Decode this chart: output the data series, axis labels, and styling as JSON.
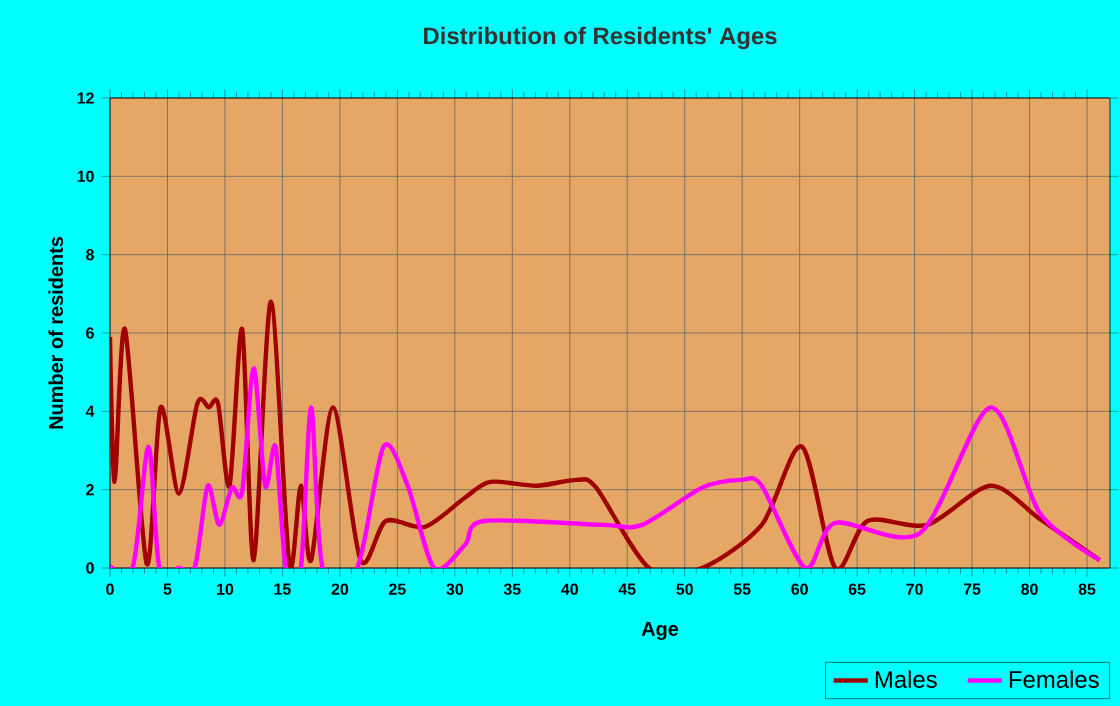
{
  "chart_data": {
    "type": "line",
    "title": "Distribution of Residents' Ages",
    "xlabel": "Age",
    "ylabel": "Number of residents",
    "xlim": [
      0,
      87
    ],
    "xticks": [
      0,
      5,
      10,
      15,
      20,
      25,
      30,
      35,
      40,
      45,
      50,
      55,
      60,
      65,
      70,
      75,
      80,
      85
    ],
    "ylim": [
      0,
      12
    ],
    "yticks": [
      0,
      2,
      4,
      6,
      8,
      10,
      12
    ],
    "grid": true,
    "legend": "bottom",
    "series": [
      {
        "name": "Males",
        "color": "#a00000",
        "x": [
          0,
          0.4,
          1.3,
          3.2,
          4.4,
          6,
          7.6,
          8.6,
          9.4,
          10.4,
          11.5,
          12.5,
          14,
          15.6,
          16.6,
          17.5,
          19.4,
          21.8,
          24,
          27.4,
          30.9,
          33.1,
          37.1,
          40.6,
          42.3,
          46.9,
          51.5,
          56.7,
          60.2,
          63.1,
          65.9,
          71.1,
          76.6,
          80.9,
          86.1
        ],
        "values": [
          5.9,
          2.2,
          6.1,
          0.1,
          4.1,
          1.9,
          4.2,
          4.1,
          4.2,
          2.1,
          6.1,
          0.2,
          6.8,
          0.1,
          2.1,
          0.2,
          4.1,
          0.2,
          1.2,
          1.05,
          1.8,
          2.2,
          2.1,
          2.25,
          2.05,
          0,
          0,
          1.1,
          3.1,
          0,
          1.2,
          1.1,
          2.1,
          1.25,
          0.2
        ]
      },
      {
        "name": "Females",
        "color": "#ff00ff",
        "x": [
          0,
          2,
          3.35,
          4.3,
          6,
          7.4,
          8.5,
          9.5,
          10.6,
          11.5,
          12.5,
          13.5,
          14.4,
          15.3,
          16.6,
          17.5,
          18.5,
          21.5,
          23.8,
          25.9,
          28.2,
          30.9,
          32.5,
          42.9,
          46.3,
          51.5,
          54.9,
          56.7,
          60.5,
          63.1,
          70.5,
          76.6,
          80.9,
          86.1
        ],
        "values": [
          0.05,
          0.05,
          3.1,
          0,
          0,
          0.05,
          2.1,
          1.1,
          2.05,
          1.95,
          5.1,
          2.1,
          3.1,
          0,
          0,
          4.1,
          0,
          0,
          3.1,
          2.1,
          0,
          0.6,
          1.2,
          1.1,
          1.1,
          2.05,
          2.25,
          2.1,
          0,
          1.15,
          0.9,
          4.1,
          1.4,
          0.2
        ]
      }
    ]
  }
}
